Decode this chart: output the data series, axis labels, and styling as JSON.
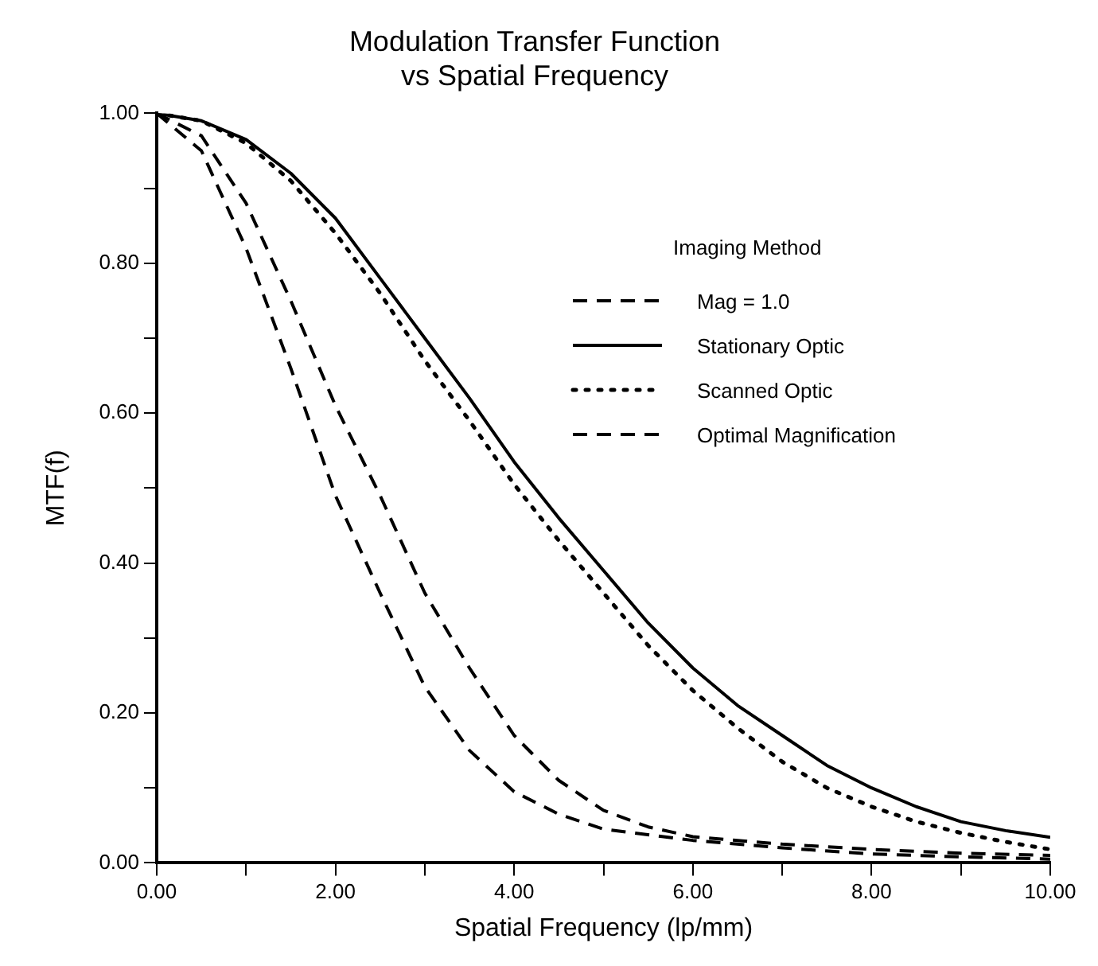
{
  "chart_data": {
    "type": "line",
    "title": "Modulation Transfer Function",
    "subtitle": "vs Spatial Frequency",
    "xlabel": "Spatial Frequency (lp/mm)",
    "ylabel": "MTF(f)",
    "legend_title": "Imaging Method",
    "legend": "top right",
    "grid": false,
    "marker": "none",
    "xlim": [
      0,
      10
    ],
    "xticks": [
      {
        "value": 0,
        "label": "0.00"
      },
      {
        "value": 1,
        "label": null
      },
      {
        "value": 2,
        "label": "2.00"
      },
      {
        "value": 3,
        "label": null
      },
      {
        "value": 4,
        "label": "4.00"
      },
      {
        "value": 5,
        "label": null
      },
      {
        "value": 6,
        "label": "6.00"
      },
      {
        "value": 7,
        "label": null
      },
      {
        "value": 8,
        "label": "8.00"
      },
      {
        "value": 9,
        "label": null
      },
      {
        "value": 10,
        "label": "10.00"
      }
    ],
    "ylim": [
      0,
      1
    ],
    "yticks": [
      {
        "value": 0,
        "label": "0.00"
      },
      {
        "value": 0.1,
        "label": null
      },
      {
        "value": 0.2,
        "label": "0.20"
      },
      {
        "value": 0.3,
        "label": null
      },
      {
        "value": 0.4,
        "label": "0.40"
      },
      {
        "value": 0.5,
        "label": null
      },
      {
        "value": 0.6,
        "label": "0.60"
      },
      {
        "value": 0.7,
        "label": null
      },
      {
        "value": 0.8,
        "label": "0.80"
      },
      {
        "value": 0.9,
        "label": null
      },
      {
        "value": 1,
        "label": "1.00"
      }
    ],
    "series": [
      {
        "name": "Mag = 1.0",
        "color": "#000000",
        "line_style": "dashed",
        "x": [
          0,
          0.5,
          1,
          1.5,
          2,
          2.5,
          3,
          3.5,
          4,
          4.5,
          5,
          6,
          7,
          8,
          9,
          10
        ],
        "values": [
          1,
          0.95,
          0.82,
          0.66,
          0.49,
          0.36,
          0.235,
          0.15,
          0.095,
          0.065,
          0.045,
          0.03,
          0.02,
          0.012,
          0.008,
          0.005
        ]
      },
      {
        "name": "Stationary Optic",
        "color": "#000000",
        "line_style": "solid",
        "x": [
          0,
          0.5,
          1,
          1.5,
          2,
          2.5,
          3,
          3.5,
          4,
          4.5,
          5,
          5.5,
          6,
          6.5,
          7,
          7.5,
          8,
          8.5,
          9,
          9.5,
          10
        ],
        "values": [
          1,
          0.99,
          0.965,
          0.92,
          0.86,
          0.78,
          0.7,
          0.62,
          0.535,
          0.46,
          0.39,
          0.32,
          0.26,
          0.21,
          0.17,
          0.13,
          0.1,
          0.075,
          0.055,
          0.043,
          0.034
        ]
      },
      {
        "name": "Scanned Optic",
        "color": "#000000",
        "line_style": "dotted",
        "x": [
          0,
          0.5,
          1,
          1.5,
          2,
          2.5,
          3,
          3.5,
          4,
          4.5,
          5,
          5.5,
          6,
          6.5,
          7,
          7.5,
          8,
          8.5,
          9,
          9.5,
          10
        ],
        "values": [
          1,
          0.99,
          0.96,
          0.91,
          0.84,
          0.76,
          0.67,
          0.59,
          0.505,
          0.43,
          0.36,
          0.29,
          0.23,
          0.18,
          0.135,
          0.1,
          0.075,
          0.055,
          0.04,
          0.028,
          0.018
        ]
      },
      {
        "name": "Optimal Magnification",
        "color": "#000000",
        "line_style": "dashed",
        "x": [
          0,
          0.5,
          1,
          1.5,
          2,
          2.5,
          3,
          3.5,
          4,
          4.5,
          5,
          5.5,
          6,
          7,
          8,
          9,
          10
        ],
        "values": [
          1,
          0.97,
          0.88,
          0.75,
          0.61,
          0.49,
          0.36,
          0.26,
          0.17,
          0.11,
          0.07,
          0.048,
          0.035,
          0.025,
          0.018,
          0.013,
          0.01
        ]
      }
    ]
  }
}
